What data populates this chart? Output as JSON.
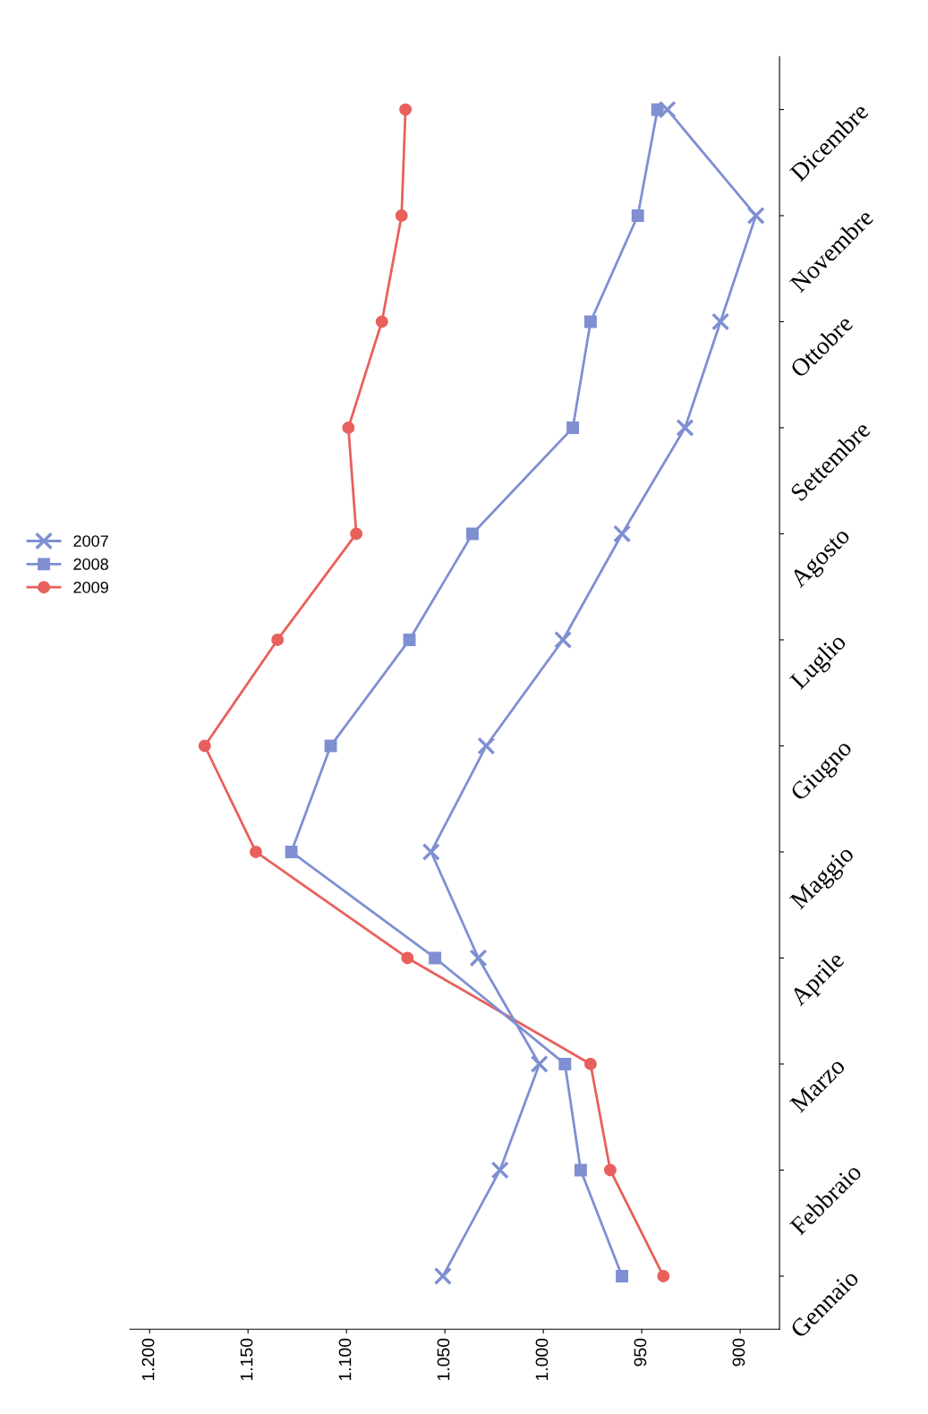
{
  "chart_data": {
    "type": "line",
    "orientation": "horizontal",
    "categories": [
      "Dicembre",
      "Novembre",
      "Ottobre",
      "Settembre",
      "Agosto",
      "Luglio",
      "Giugno",
      "Maggio",
      "Aprile",
      "Marzo",
      "Febbraio",
      "Gennaio"
    ],
    "series": [
      {
        "name": "2007",
        "color": "#7f8fd2",
        "marker": "cross",
        "values": [
          937,
          892,
          910,
          928,
          960,
          990,
          1029,
          1057,
          1033,
          1002,
          1022,
          1051
        ]
      },
      {
        "name": "2008",
        "color": "#7f8fd2",
        "marker": "square",
        "values": [
          942,
          952,
          976,
          985,
          1036,
          1068,
          1108,
          1128,
          1055,
          989,
          981,
          960
        ]
      },
      {
        "name": "2009",
        "color": "#e8605c",
        "marker": "circle",
        "values": [
          1070,
          1072,
          1082,
          1099,
          1095,
          1135,
          1172,
          1146,
          1069,
          976,
          966,
          939
        ]
      }
    ],
    "xlim": [
      1210,
      880
    ],
    "xticks": [
      {
        "value": 1200,
        "label": "1.200"
      },
      {
        "value": 1150,
        "label": "1.150"
      },
      {
        "value": 1100,
        "label": "1.100"
      },
      {
        "value": 1050,
        "label": "1.050"
      },
      {
        "value": 1000,
        "label": "1.000"
      },
      {
        "value": 950,
        "label": "950"
      },
      {
        "value": 900,
        "label": "900"
      }
    ],
    "grid": false,
    "legend": "left"
  }
}
